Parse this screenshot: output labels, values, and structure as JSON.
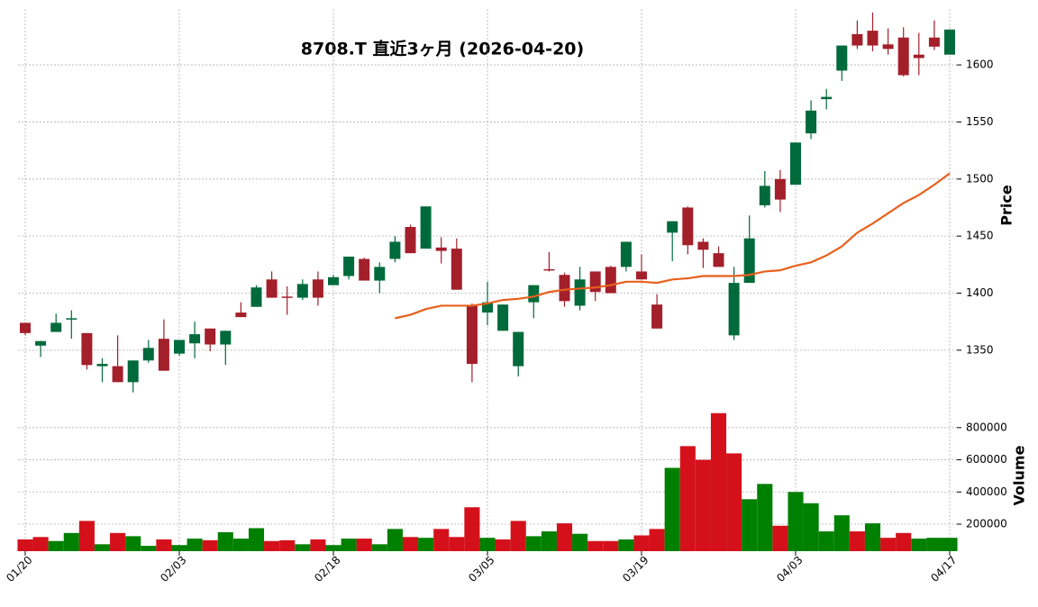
{
  "chart_data": [
    {
      "type": "candlestick",
      "title": "8708.T  直近3ヶ月  (2026-04-20)",
      "ylabel": "Price",
      "open": [
        1374,
        1354,
        1366,
        1377,
        1365,
        1336,
        1336,
        1322,
        1341,
        1360,
        1347,
        1356,
        1369,
        1355,
        1383,
        1388,
        1412,
        1397,
        1396,
        1412,
        1407,
        1415,
        1430,
        1411,
        1430,
        1458,
        1439,
        1440,
        1439,
        1389,
        1383,
        1367,
        1336,
        1392,
        1421,
        1416,
        1389,
        1419,
        1423,
        1423,
        1419,
        1390,
        1453,
        1475,
        1445,
        1435,
        1363,
        1409,
        1477,
        1500,
        1495,
        1540,
        1570,
        1595,
        1627,
        1630,
        1618,
        1624,
        1609,
        1624,
        1609
      ],
      "high": [
        1374,
        1358,
        1382,
        1385,
        1365,
        1343,
        1363,
        1341,
        1359,
        1377,
        1359,
        1375,
        1369,
        1367,
        1392,
        1407,
        1419,
        1406,
        1412,
        1419,
        1416,
        1432,
        1431,
        1427,
        1450,
        1460,
        1476,
        1449,
        1448,
        1391,
        1410,
        1390,
        1366,
        1407,
        1436,
        1418,
        1423,
        1419,
        1424,
        1445,
        1434,
        1399,
        1463,
        1476,
        1448,
        1441,
        1423,
        1468,
        1507,
        1508,
        1532,
        1569,
        1579,
        1617,
        1639,
        1646,
        1632,
        1633,
        1628,
        1639,
        1631
      ],
      "low": [
        1363,
        1344,
        1366,
        1360,
        1333,
        1322,
        1322,
        1313,
        1339,
        1332,
        1345,
        1343,
        1349,
        1337,
        1379,
        1388,
        1396,
        1381,
        1394,
        1389,
        1407,
        1412,
        1411,
        1400,
        1427,
        1435,
        1439,
        1426,
        1403,
        1322,
        1372,
        1367,
        1327,
        1378,
        1419,
        1388,
        1385,
        1393,
        1400,
        1419,
        1412,
        1369,
        1428,
        1434,
        1422,
        1423,
        1359,
        1409,
        1475,
        1471,
        1495,
        1535,
        1561,
        1586,
        1614,
        1612,
        1609,
        1590,
        1591,
        1613,
        1609
      ],
      "close": [
        1365,
        1358,
        1374,
        1378,
        1337,
        1338,
        1322,
        1341,
        1352,
        1332,
        1359,
        1364,
        1355,
        1367,
        1379,
        1405,
        1396,
        1396,
        1408,
        1396,
        1414,
        1432,
        1411,
        1423,
        1445,
        1435,
        1476,
        1437,
        1403,
        1338,
        1392,
        1390,
        1366,
        1407,
        1420,
        1393,
        1412,
        1401,
        1400,
        1445,
        1412,
        1369,
        1463,
        1442,
        1438,
        1423,
        1409,
        1448,
        1494,
        1482,
        1532,
        1560,
        1572,
        1617,
        1617,
        1617,
        1614,
        1591,
        1606,
        1616,
        1631
      ],
      "up_color": "#006a3c",
      "down_color": "#a31f2a",
      "ma": {
        "color": "#e8601c",
        "values": [
          null,
          null,
          null,
          null,
          null,
          null,
          null,
          null,
          null,
          null,
          null,
          null,
          null,
          null,
          null,
          null,
          null,
          null,
          null,
          null,
          null,
          null,
          null,
          null,
          1378,
          1381,
          1386,
          1389,
          1389,
          1389,
          1391,
          1394,
          1395,
          1397,
          1401,
          1403,
          1404,
          1405,
          1407,
          1410,
          1410,
          1409,
          1412,
          1413,
          1415,
          1415,
          1415,
          1416,
          1419,
          1420,
          1424,
          1427,
          1433,
          1441,
          1453,
          1461,
          1470,
          1479,
          1486,
          1495,
          1505
        ]
      },
      "ylim": [
        1312,
        1649
      ],
      "yticks": [
        1350,
        1400,
        1450,
        1500,
        1550,
        1600
      ],
      "grid": true
    },
    {
      "type": "bar",
      "ylabel": "Volume",
      "categories": [
        "01/20",
        null,
        null,
        null,
        null,
        null,
        null,
        null,
        null,
        null,
        "02/03",
        null,
        null,
        null,
        null,
        null,
        null,
        null,
        null,
        null,
        "02/18",
        null,
        null,
        null,
        null,
        null,
        null,
        null,
        null,
        null,
        "03/05",
        null,
        null,
        null,
        null,
        null,
        null,
        null,
        null,
        null,
        "03/19",
        null,
        null,
        null,
        null,
        null,
        null,
        null,
        null,
        null,
        "04/03",
        null,
        null,
        null,
        null,
        null,
        null,
        null,
        null,
        null,
        "04/17"
      ],
      "values": [
        105000,
        120000,
        95000,
        145000,
        220000,
        75000,
        145000,
        125000,
        65000,
        105000,
        70000,
        110000,
        100000,
        150000,
        110000,
        175000,
        95000,
        100000,
        75000,
        105000,
        70000,
        110000,
        110000,
        75000,
        170000,
        120000,
        115000,
        170000,
        120000,
        305000,
        115000,
        105000,
        220000,
        125000,
        155000,
        205000,
        140000,
        95000,
        95000,
        105000,
        130000,
        170000,
        550000,
        685000,
        600000,
        890000,
        640000,
        355000,
        450000,
        190000,
        400000,
        330000,
        155000,
        255000,
        155000,
        205000,
        115000,
        145000,
        110000,
        115000,
        115000
      ],
      "colors": [
        "#d4111b",
        "#d4111b",
        "#008000",
        "#008000",
        "#d4111b",
        "#008000",
        "#d4111b",
        "#008000",
        "#008000",
        "#d4111b",
        "#008000",
        "#008000",
        "#d4111b",
        "#008000",
        "#008000",
        "#008000",
        "#d4111b",
        "#d4111b",
        "#008000",
        "#d4111b",
        "#008000",
        "#008000",
        "#d4111b",
        "#008000",
        "#008000",
        "#d4111b",
        "#008000",
        "#d4111b",
        "#d4111b",
        "#d4111b",
        "#008000",
        "#d4111b",
        "#d4111b",
        "#008000",
        "#008000",
        "#d4111b",
        "#008000",
        "#d4111b",
        "#d4111b",
        "#008000",
        "#d4111b",
        "#d4111b",
        "#008000",
        "#d4111b",
        "#d4111b",
        "#d4111b",
        "#d4111b",
        "#008000",
        "#008000",
        "#d4111b",
        "#008000",
        "#008000",
        "#008000",
        "#008000",
        "#d4111b",
        "#008000",
        "#d4111b",
        "#d4111b",
        "#008000",
        "#008000",
        "#008000"
      ],
      "ylim": [
        32000,
        995000
      ],
      "yticks": [
        200000,
        400000,
        600000,
        800000
      ],
      "grid": true
    }
  ]
}
